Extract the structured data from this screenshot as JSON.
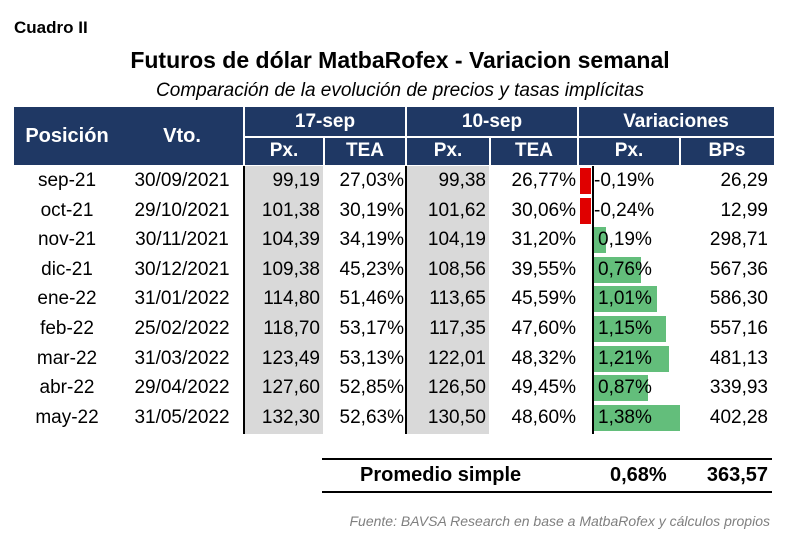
{
  "label": "Cuadro II",
  "title": "Futuros de dólar MatbaRofex - Variacion semanal",
  "subtitle": "Comparación de la evolución de precios y tasas implícitas",
  "headers": {
    "posicion": "Posición",
    "vto": "Vto.",
    "date1": "17-sep",
    "date2": "10-sep",
    "variaciones": "Variaciones",
    "px": "Px.",
    "tea": "TEA",
    "bps": "BPs"
  },
  "rows": [
    {
      "pos": "sep-21",
      "vto": "30/09/2021",
      "px1": "99,19",
      "tea1": "27,03%",
      "px2": "99,38",
      "tea2": "26,77%",
      "var": "-0,19%",
      "bps": "26,29"
    },
    {
      "pos": "oct-21",
      "vto": "29/10/2021",
      "px1": "101,38",
      "tea1": "30,19%",
      "px2": "101,62",
      "tea2": "30,06%",
      "var": "-0,24%",
      "bps": "12,99"
    },
    {
      "pos": "nov-21",
      "vto": "30/11/2021",
      "px1": "104,39",
      "tea1": "34,19%",
      "px2": "104,19",
      "tea2": "31,20%",
      "var": "0,19%",
      "bps": "298,71"
    },
    {
      "pos": "dic-21",
      "vto": "30/12/2021",
      "px1": "109,38",
      "tea1": "45,23%",
      "px2": "108,56",
      "tea2": "39,55%",
      "var": "0,76%",
      "bps": "567,36"
    },
    {
      "pos": "ene-22",
      "vto": "31/01/2022",
      "px1": "114,80",
      "tea1": "51,46%",
      "px2": "113,65",
      "tea2": "45,59%",
      "var": "1,01%",
      "bps": "586,30"
    },
    {
      "pos": "feb-22",
      "vto": "25/02/2022",
      "px1": "118,70",
      "tea1": "53,17%",
      "px2": "117,35",
      "tea2": "47,60%",
      "var": "1,15%",
      "bps": "557,16"
    },
    {
      "pos": "mar-22",
      "vto": "31/03/2022",
      "px1": "123,49",
      "tea1": "53,13%",
      "px2": "122,01",
      "tea2": "48,32%",
      "var": "1,21%",
      "bps": "481,13"
    },
    {
      "pos": "abr-22",
      "vto": "29/04/2022",
      "px1": "127,60",
      "tea1": "52,85%",
      "px2": "126,50",
      "tea2": "49,45%",
      "var": "0,87%",
      "bps": "339,93"
    },
    {
      "pos": "may-22",
      "vto": "31/05/2022",
      "px1": "132,30",
      "tea1": "52,63%",
      "px2": "130,50",
      "tea2": "48,60%",
      "var": "1,38%",
      "bps": "402,28"
    }
  ],
  "average": {
    "label": "Promedio simple",
    "var": "0,68%",
    "bps": "363,57"
  },
  "source": "Fuente: BAVSA Research en base a MatbaRofex y cálculos propios",
  "colors": {
    "header": "#1f3864",
    "positive_bar": "#63be7b",
    "negative_bar": "#e00000",
    "shade": "#d9d9d9"
  }
}
